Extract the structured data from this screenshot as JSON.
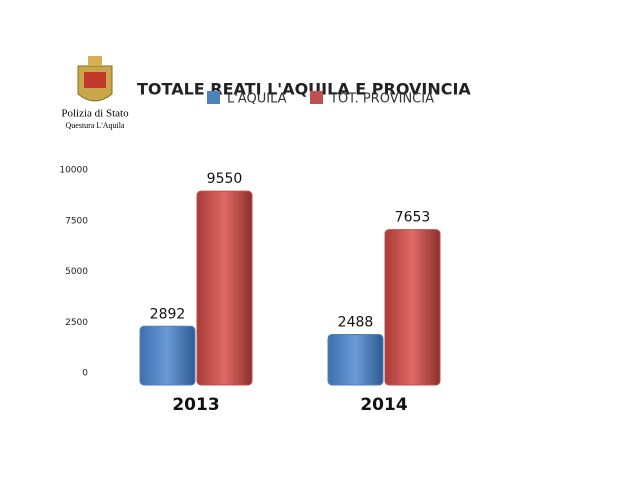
{
  "logo": {
    "title": "Polizia di Stato",
    "subtitle": "Questura L'Aquila"
  },
  "chart_data": {
    "type": "bar",
    "title": "TOTALE REATI L'AQUILA E PROVINCIA",
    "categories": [
      "2013",
      "2014"
    ],
    "series": [
      {
        "name": "L'AQUILA",
        "color": "#4f81bd",
        "values": [
          2892,
          2488
        ]
      },
      {
        "name": "TOT. PROVINCIA",
        "color": "#c0504d",
        "values": [
          9550,
          7653
        ]
      }
    ],
    "ylim": [
      0,
      10000
    ],
    "yticks": [
      0,
      2500,
      5000,
      7500,
      10000
    ],
    "grid": false
  }
}
